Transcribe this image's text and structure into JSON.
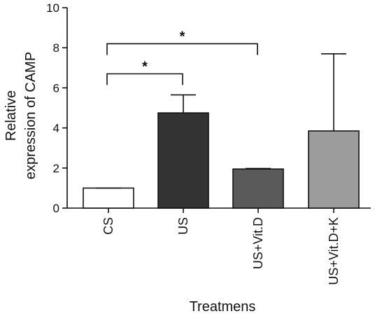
{
  "chart_data": {
    "type": "bar",
    "categories": [
      "CS",
      "US",
      "US+Vit.D",
      "US+Vit.D+K"
    ],
    "values": [
      1.0,
      4.75,
      1.95,
      3.85
    ],
    "error_upper": [
      1.0,
      5.65,
      1.98,
      7.7
    ],
    "bar_colors": [
      "#ffffff",
      "#333333",
      "#5a5a5a",
      "#9c9c9c"
    ],
    "ylim": [
      0,
      10
    ],
    "yticks": [
      0,
      2,
      4,
      6,
      8,
      10
    ],
    "ytick_labels": [
      "0",
      "2",
      "4",
      "6",
      "8",
      "10"
    ],
    "ylabel_line1": "Relative",
    "ylabel_line2": "expression of CAMP",
    "xlabel": "Treatmens",
    "grid": false,
    "significance": [
      {
        "from": "CS",
        "to": "US",
        "label": "*",
        "y": 6.7
      },
      {
        "from": "CS",
        "to": "US+Vit.D",
        "label": "*",
        "y": 8.2
      }
    ]
  }
}
